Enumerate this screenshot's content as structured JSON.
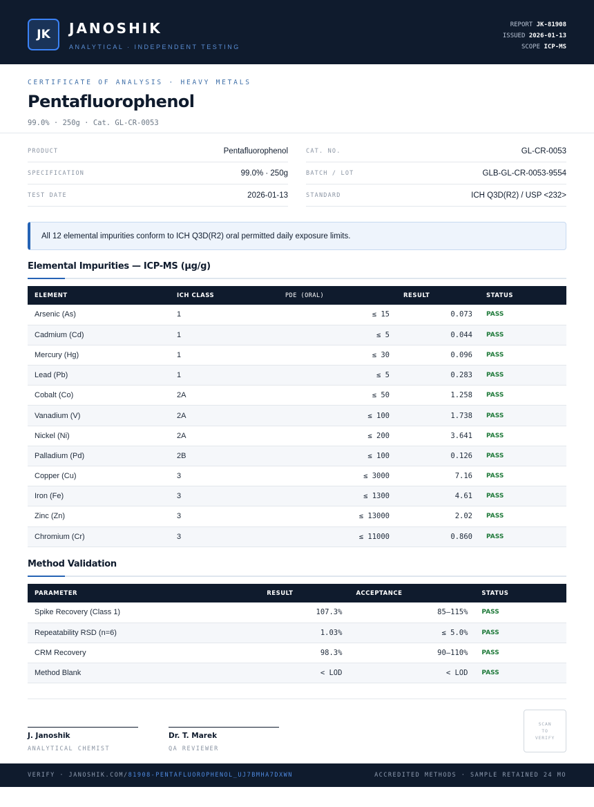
{
  "header": {
    "logo_text": "JK",
    "brand": "JANOSHIK",
    "tagline": "ANALYTICAL · INDEPENDENT TESTING",
    "report_label": "REPORT",
    "report_value": "JK-81908",
    "issued_label": "ISSUED",
    "issued_value": "2026-01-13",
    "scope_label": "SCOPE",
    "scope_value": "ICP-MS"
  },
  "doc": {
    "eyebrow": "CERTIFICATE OF ANALYSIS · HEAVY METALS",
    "title": "Pentafluorophenol",
    "subtitle": "99.0% · 250g  ·  Cat. GL-CR-0053"
  },
  "info": {
    "left": [
      {
        "label": "PRODUCT",
        "value": "Pentafluorophenol"
      },
      {
        "label": "SPECIFICATION",
        "value": "99.0% · 250g"
      },
      {
        "label": "TEST DATE",
        "value": "2026-01-13"
      }
    ],
    "right": [
      {
        "label": "CAT. NO.",
        "value": "GL-CR-0053"
      },
      {
        "label": "BATCH / LOT",
        "value": "GLB-GL-CR-0053-9554"
      },
      {
        "label": "STANDARD",
        "value": "ICH Q3D(R2) / USP <232>"
      }
    ]
  },
  "notice": "All 12 elemental impurities conform to ICH Q3D(R2) oral permitted daily exposure limits.",
  "impurities": {
    "title": "Elemental Impurities — ICP-MS (µg/g)",
    "headers": [
      "ELEMENT",
      "ICH CLASS",
      "PDE (ORAL)",
      "RESULT",
      "STATUS"
    ],
    "rows": [
      {
        "element": "Arsenic (As)",
        "class": "1",
        "pde": "≤ 15",
        "result": "0.073",
        "status": "PASS"
      },
      {
        "element": "Cadmium (Cd)",
        "class": "1",
        "pde": "≤ 5",
        "result": "0.044",
        "status": "PASS"
      },
      {
        "element": "Mercury (Hg)",
        "class": "1",
        "pde": "≤ 30",
        "result": "0.096",
        "status": "PASS"
      },
      {
        "element": "Lead (Pb)",
        "class": "1",
        "pde": "≤ 5",
        "result": "0.283",
        "status": "PASS"
      },
      {
        "element": "Cobalt (Co)",
        "class": "2A",
        "pde": "≤ 50",
        "result": "1.258",
        "status": "PASS"
      },
      {
        "element": "Vanadium (V)",
        "class": "2A",
        "pde": "≤ 100",
        "result": "1.738",
        "status": "PASS"
      },
      {
        "element": "Nickel (Ni)",
        "class": "2A",
        "pde": "≤ 200",
        "result": "3.641",
        "status": "PASS"
      },
      {
        "element": "Palladium (Pd)",
        "class": "2B",
        "pde": "≤ 100",
        "result": "0.126",
        "status": "PASS"
      },
      {
        "element": "Copper (Cu)",
        "class": "3",
        "pde": "≤ 3000",
        "result": "7.16",
        "status": "PASS"
      },
      {
        "element": "Iron (Fe)",
        "class": "3",
        "pde": "≤ 1300",
        "result": "4.61",
        "status": "PASS"
      },
      {
        "element": "Zinc (Zn)",
        "class": "3",
        "pde": "≤ 13000",
        "result": "2.02",
        "status": "PASS"
      },
      {
        "element": "Chromium (Cr)",
        "class": "3",
        "pde": "≤ 11000",
        "result": "0.860",
        "status": "PASS"
      }
    ]
  },
  "validation": {
    "title": "Method Validation",
    "headers": [
      "PARAMETER",
      "RESULT",
      "ACCEPTANCE",
      "STATUS"
    ],
    "rows": [
      {
        "parameter": "Spike Recovery (Class 1)",
        "result": "107.3%",
        "acceptance": "85–115%",
        "status": "PASS"
      },
      {
        "parameter": "Repeatability RSD (n=6)",
        "result": "1.03%",
        "acceptance": "≤ 5.0%",
        "status": "PASS"
      },
      {
        "parameter": "CRM Recovery",
        "result": "98.3%",
        "acceptance": "90–110%",
        "status": "PASS"
      },
      {
        "parameter": "Method Blank",
        "result": "< LOD",
        "acceptance": "< LOD",
        "status": "PASS"
      }
    ]
  },
  "signatures": [
    {
      "name": "J. Janoshik",
      "role": "ANALYTICAL CHEMIST"
    },
    {
      "name": "Dr. T. Marek",
      "role": "QA REVIEWER"
    }
  ],
  "qr": {
    "line1": "SCAN",
    "line2": "TO",
    "line3": "VERIFY"
  },
  "footer": {
    "verify_prefix": "VERIFY · JANOSHIK.COM/",
    "verify_link": "81908-PENTAFLUOROPHENOL_UJ7BMHA7DXWN",
    "right": "ACCREDITED METHODS · SAMPLE RETAINED 24 MO"
  }
}
